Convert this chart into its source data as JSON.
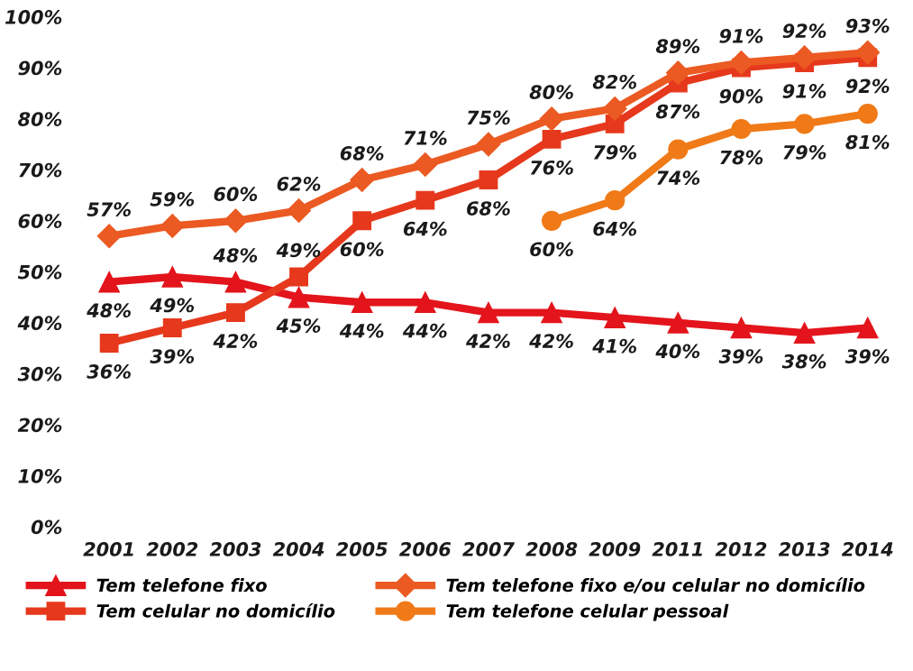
{
  "chart_data": {
    "type": "line",
    "categories": [
      "2001",
      "2002",
      "2003",
      "2004",
      "2005",
      "2006",
      "2007",
      "2008",
      "2009",
      "2011",
      "2012",
      "2013",
      "2014"
    ],
    "series": [
      {
        "name": "Tem telefone fixo",
        "color": "#e3141b",
        "marker": "triangle",
        "values": [
          48,
          49,
          48,
          45,
          44,
          44,
          42,
          42,
          41,
          40,
          39,
          38,
          39
        ],
        "value_labels": [
          "48%",
          "49%",
          "48%",
          "45%",
          "44%",
          "44%",
          "42%",
          "42%",
          "41%",
          "40%",
          "39%",
          "38%",
          "39%"
        ]
      },
      {
        "name": "Tem celular no domicílio",
        "color": "#e6381c",
        "marker": "square",
        "values": [
          36,
          39,
          42,
          49,
          60,
          64,
          68,
          76,
          79,
          87,
          90,
          91,
          92
        ],
        "value_labels": [
          "36%",
          "39%",
          "42%",
          "49%",
          "60%",
          "64%",
          "68%",
          "76%",
          "79%",
          "87%",
          "90%",
          "91%",
          "92%"
        ]
      },
      {
        "name": "Tem telefone fixo e/ou celular no domicílio",
        "color": "#eb5a22",
        "marker": "diamond",
        "values": [
          57,
          59,
          60,
          62,
          68,
          71,
          75,
          80,
          82,
          89,
          91,
          92,
          93
        ],
        "value_labels": [
          "57%",
          "59%",
          "60%",
          "62%",
          "68%",
          "71%",
          "75%",
          "80%",
          "82%",
          "89%",
          "91%",
          "92%",
          "93%"
        ]
      },
      {
        "name": "Tem telefone celular pessoal",
        "color": "#f07a18",
        "marker": "circle",
        "values": [
          null,
          null,
          null,
          null,
          null,
          null,
          null,
          60,
          64,
          74,
          78,
          79,
          81
        ],
        "value_labels": [
          null,
          null,
          null,
          null,
          null,
          null,
          null,
          "60%",
          "64%",
          "74%",
          "78%",
          "79%",
          "81%"
        ]
      }
    ],
    "ylim": [
      0,
      100
    ],
    "yticks": [
      {
        "value": 0,
        "label": "0%"
      },
      {
        "value": 10,
        "label": "10%"
      },
      {
        "value": 20,
        "label": "20%"
      },
      {
        "value": 30,
        "label": "30%"
      },
      {
        "value": 40,
        "label": "40%"
      },
      {
        "value": 50,
        "label": "50%"
      },
      {
        "value": 60,
        "label": "60%"
      },
      {
        "value": 70,
        "label": "70%"
      },
      {
        "value": 80,
        "label": "80%"
      },
      {
        "value": 90,
        "label": "90%"
      },
      {
        "value": 100,
        "label": "100%"
      }
    ],
    "legend": "bottom",
    "grid": false
  }
}
